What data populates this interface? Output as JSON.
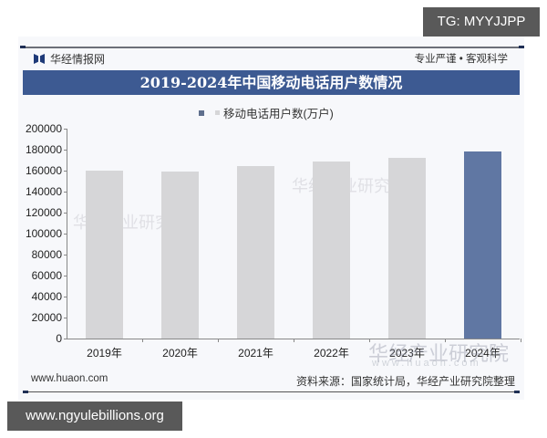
{
  "overlay": {
    "tg_badge": "TG: MYYJJPP",
    "url_badge": "www.ngyulebillions.org"
  },
  "header": {
    "brand": "华经情报网",
    "slogan": "专业严谨 • 客观科学",
    "title": "2019-2024年中国移动电话用户数情况"
  },
  "footer": {
    "site": "www.huaon.com",
    "source": "资料来源：国家统计局，华经产业研究院整理"
  },
  "watermark": {
    "text": "华经产业研究院",
    "url": "www.huaon.com"
  },
  "colors": {
    "title_bar": "#3d5a92",
    "bar_default": "#d6d6d8",
    "bar_highlight": "#6077a3"
  },
  "chart_data": {
    "type": "bar",
    "title": "2019-2024年中国移动电话用户数情况",
    "xlabel": "",
    "ylabel": "",
    "legend": [
      "移动电话用户数(万户)"
    ],
    "legend_position": "top",
    "categories": [
      "2019年",
      "2020年",
      "2021年",
      "2022年",
      "2023年",
      "2024年"
    ],
    "series": [
      {
        "name": "移动电话用户数(万户)",
        "values": [
          160000,
          159400,
          164300,
          168300,
          172600,
          178600
        ]
      }
    ],
    "ylim": [
      0,
      200000
    ],
    "yticks": [
      "200000",
      "180000",
      "160000",
      "140000",
      "120000",
      "100000",
      "80000",
      "60000",
      "40000",
      "20000",
      "0"
    ],
    "grid": false,
    "highlighted_category": "2024年"
  }
}
